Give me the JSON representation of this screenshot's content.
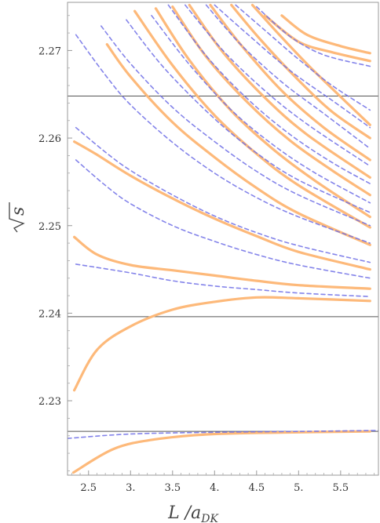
{
  "chart_data": {
    "type": "line",
    "xlabel": "L /a",
    "xlabel_sub": "DK",
    "ylabel": "s",
    "xlim": [
      2.25,
      5.95
    ],
    "ylim": [
      2.2215,
      2.2755
    ],
    "x_ticks": [
      2.5,
      3.0,
      3.5,
      4.0,
      4.5,
      5.0,
      5.5
    ],
    "x_tick_labels": [
      "2.5",
      "3.",
      "3.5",
      "4.",
      "4.5",
      "5.",
      "5.5"
    ],
    "y_ticks": [
      2.23,
      2.24,
      2.25,
      2.26,
      2.27
    ],
    "y_tick_labels": [
      "2.23",
      "2.24",
      "2.25",
      "2.26",
      "2.27"
    ],
    "thresholds": [
      2.2265,
      2.2396,
      2.2648
    ],
    "colors": {
      "solid": "#FDB97A",
      "dashed": "#6F6FE6",
      "threshold": "#555555"
    },
    "series": [
      {
        "style": "solid",
        "points": [
          [
            2.32,
            2.2218
          ],
          [
            2.8,
            2.2245
          ],
          [
            3.3,
            2.2256
          ],
          [
            4,
            2.2262
          ],
          [
            5,
            2.2264
          ],
          [
            5.85,
            2.2265
          ]
        ]
      },
      {
        "style": "solid",
        "points": [
          [
            2.33,
            2.2312
          ],
          [
            2.6,
            2.2358
          ],
          [
            3.0,
            2.2385
          ],
          [
            3.5,
            2.2404
          ],
          [
            4,
            2.2413
          ],
          [
            4.5,
            2.2418
          ],
          [
            5,
            2.2417
          ],
          [
            5.85,
            2.2414
          ]
        ]
      },
      {
        "style": "solid",
        "points": [
          [
            2.33,
            2.2487
          ],
          [
            2.6,
            2.2467
          ],
          [
            3.0,
            2.2455
          ],
          [
            3.5,
            2.2449
          ],
          [
            4,
            2.2443
          ],
          [
            4.5,
            2.2437
          ],
          [
            5,
            2.2432
          ],
          [
            5.85,
            2.2428
          ]
        ]
      },
      {
        "style": "solid",
        "points": [
          [
            2.33,
            2.2596
          ],
          [
            2.6,
            2.2581
          ],
          [
            3,
            2.2557
          ],
          [
            3.5,
            2.2531
          ],
          [
            4,
            2.2508
          ],
          [
            4.5,
            2.2488
          ],
          [
            5,
            2.247
          ],
          [
            5.85,
            2.245
          ]
        ]
      },
      {
        "style": "solid",
        "points": [
          [
            2.72,
            2.2707
          ],
          [
            3.0,
            2.267
          ],
          [
            3.5,
            2.2618
          ],
          [
            4,
            2.2578
          ],
          [
            4.5,
            2.2543
          ],
          [
            5,
            2.2514
          ],
          [
            5.85,
            2.2478
          ]
        ]
      },
      {
        "style": "solid",
        "points": [
          [
            3.05,
            2.2745
          ],
          [
            3.5,
            2.2683
          ],
          [
            4,
            2.2626
          ],
          [
            4.5,
            2.2582
          ],
          [
            5,
            2.2546
          ],
          [
            5.85,
            2.2498
          ]
        ]
      },
      {
        "style": "solid",
        "points": [
          [
            3.3,
            2.2748
          ],
          [
            3.7,
            2.2689
          ],
          [
            4.2,
            2.2631
          ],
          [
            4.7,
            2.2587
          ],
          [
            5.2,
            2.2551
          ],
          [
            5.85,
            2.251
          ]
        ]
      },
      {
        "style": "solid",
        "points": [
          [
            3.5,
            2.275
          ],
          [
            3.9,
            2.2693
          ],
          [
            4.4,
            2.264
          ],
          [
            4.9,
            2.2597
          ],
          [
            5.4,
            2.2563
          ],
          [
            5.85,
            2.2535
          ]
        ]
      },
      {
        "style": "solid",
        "points": [
          [
            3.7,
            2.2752
          ],
          [
            4.1,
            2.2698
          ],
          [
            4.6,
            2.2646
          ],
          [
            5.1,
            2.2604
          ],
          [
            5.85,
            2.2555
          ]
        ]
      },
      {
        "style": "solid",
        "points": [
          [
            3.95,
            2.2752
          ],
          [
            4.3,
            2.2708
          ],
          [
            4.8,
            2.2654
          ],
          [
            5.3,
            2.2612
          ],
          [
            5.85,
            2.2575
          ]
        ]
      },
      {
        "style": "solid",
        "points": [
          [
            4.2,
            2.2752
          ],
          [
            4.55,
            2.2712
          ],
          [
            5,
            2.2666
          ],
          [
            5.4,
            2.263
          ],
          [
            5.85,
            2.26
          ]
        ]
      },
      {
        "style": "solid",
        "points": [
          [
            4.45,
            2.2752
          ],
          [
            4.8,
            2.2715
          ],
          [
            5.2,
            2.2675
          ],
          [
            5.85,
            2.2615
          ]
        ]
      },
      {
        "style": "solid",
        "points": [
          [
            4.6,
            2.274
          ],
          [
            5.0,
            2.271
          ],
          [
            5.4,
            2.2698
          ],
          [
            5.85,
            2.2688
          ]
        ]
      },
      {
        "style": "solid",
        "points": [
          [
            4.8,
            2.274
          ],
          [
            5.1,
            2.2718
          ],
          [
            5.5,
            2.2705
          ],
          [
            5.85,
            2.2697
          ]
        ]
      },
      {
        "style": "dashed",
        "points": [
          [
            2.25,
            2.2257
          ],
          [
            3,
            2.2262
          ],
          [
            4,
            2.2264
          ],
          [
            5,
            2.2265
          ],
          [
            5.95,
            2.2266
          ]
        ]
      },
      {
        "style": "dashed",
        "points": [
          [
            2.35,
            2.2456
          ],
          [
            3,
            2.2446
          ],
          [
            3.5,
            2.2437
          ],
          [
            4,
            2.2431
          ],
          [
            4.5,
            2.2427
          ],
          [
            5,
            2.2423
          ],
          [
            5.85,
            2.2419
          ]
        ]
      },
      {
        "style": "dashed",
        "points": [
          [
            2.35,
            2.2575
          ],
          [
            2.7,
            2.2546
          ],
          [
            3,
            2.2525
          ],
          [
            3.5,
            2.25
          ],
          [
            4,
            2.2482
          ],
          [
            4.5,
            2.2467
          ],
          [
            5,
            2.2455
          ],
          [
            5.85,
            2.244
          ]
        ]
      },
      {
        "style": "dashed",
        "points": [
          [
            2.35,
            2.2612
          ],
          [
            2.7,
            2.2584
          ],
          [
            3,
            2.2563
          ],
          [
            3.5,
            2.2535
          ],
          [
            4,
            2.2511
          ],
          [
            4.5,
            2.2492
          ],
          [
            5,
            2.2477
          ],
          [
            5.85,
            2.2458
          ]
        ]
      },
      {
        "style": "dashed",
        "points": [
          [
            2.35,
            2.2718
          ],
          [
            2.7,
            2.2672
          ],
          [
            3,
            2.2638
          ],
          [
            3.5,
            2.2595
          ],
          [
            4,
            2.256
          ],
          [
            4.5,
            2.2532
          ],
          [
            5,
            2.251
          ],
          [
            5.85,
            2.248
          ]
        ]
      },
      {
        "style": "dashed",
        "points": [
          [
            2.65,
            2.2728
          ],
          [
            3,
            2.2685
          ],
          [
            3.5,
            2.2635
          ],
          [
            4,
            2.2596
          ],
          [
            4.5,
            2.2562
          ],
          [
            5,
            2.2535
          ],
          [
            5.85,
            2.25
          ]
        ]
      },
      {
        "style": "dashed",
        "points": [
          [
            2.95,
            2.2735
          ],
          [
            3.4,
            2.268
          ],
          [
            4,
            2.2622
          ],
          [
            4.5,
            2.2583
          ],
          [
            5,
            2.2552
          ],
          [
            5.85,
            2.2515
          ]
        ]
      },
      {
        "style": "dashed",
        "points": [
          [
            3.25,
            2.274
          ],
          [
            3.7,
            2.2684
          ],
          [
            4.2,
            2.2632
          ],
          [
            4.7,
            2.2592
          ],
          [
            5.2,
            2.256
          ],
          [
            5.85,
            2.2526
          ]
        ]
      },
      {
        "style": "dashed",
        "points": [
          [
            3.45,
            2.2752
          ],
          [
            3.9,
            2.2694
          ],
          [
            4.4,
            2.2644
          ],
          [
            4.9,
            2.2604
          ],
          [
            5.4,
            2.2572
          ],
          [
            5.85,
            2.2548
          ]
        ]
      },
      {
        "style": "dashed",
        "points": [
          [
            3.65,
            2.2752
          ],
          [
            4.1,
            2.27
          ],
          [
            4.6,
            2.2654
          ],
          [
            5.1,
            2.2616
          ],
          [
            5.85,
            2.2568
          ]
        ]
      },
      {
        "style": "dashed",
        "points": [
          [
            3.9,
            2.2752
          ],
          [
            4.3,
            2.2708
          ],
          [
            4.8,
            2.2664
          ],
          [
            5.3,
            2.2628
          ],
          [
            5.85,
            2.2588
          ]
        ]
      },
      {
        "style": "dashed",
        "points": [
          [
            4.0,
            2.2752
          ],
          [
            4.4,
            2.2718
          ],
          [
            4.9,
            2.2677
          ],
          [
            5.4,
            2.2643
          ],
          [
            5.85,
            2.2612
          ]
        ]
      },
      {
        "style": "dashed",
        "points": [
          [
            4.25,
            2.2752
          ],
          [
            4.6,
            2.2723
          ],
          [
            5.0,
            2.269
          ],
          [
            5.4,
            2.266
          ],
          [
            5.85,
            2.2632
          ]
        ]
      },
      {
        "style": "dashed",
        "points": [
          [
            4.5,
            2.275
          ],
          [
            4.9,
            2.2716
          ],
          [
            5.3,
            2.2695
          ],
          [
            5.85,
            2.2682
          ]
        ]
      }
    ]
  }
}
